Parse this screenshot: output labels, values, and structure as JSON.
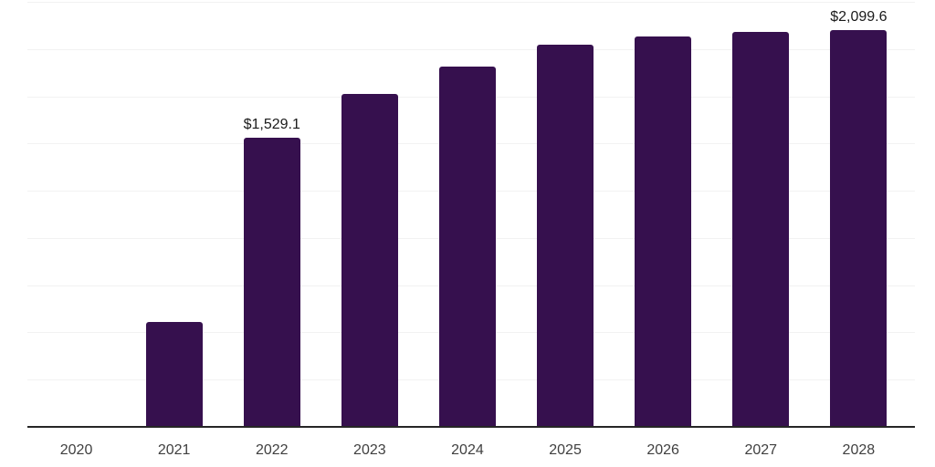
{
  "chart_data": {
    "type": "bar",
    "title": "",
    "xlabel": "",
    "ylabel": "",
    "categories": [
      "2020",
      "2021",
      "2022",
      "2023",
      "2024",
      "2025",
      "2026",
      "2027",
      "2028"
    ],
    "values": [
      3,
      555,
      1529.1,
      1760,
      1908,
      2023,
      2066,
      2090,
      2099.6
    ],
    "value_labels": [
      "",
      "",
      "$1,529.1",
      "",
      "",
      "",
      "",
      "",
      "$2,099.6"
    ],
    "ylim": [
      0,
      2250
    ],
    "grid_step": 250,
    "grid": "horizontal",
    "legend": "none",
    "colors": {
      "bar": "#36104e",
      "axis_line": "#262626",
      "gridline": "#f2f2f2",
      "tick_label": "#404040",
      "value_label": "#1a1a1a",
      "background": "#ffffff"
    }
  }
}
